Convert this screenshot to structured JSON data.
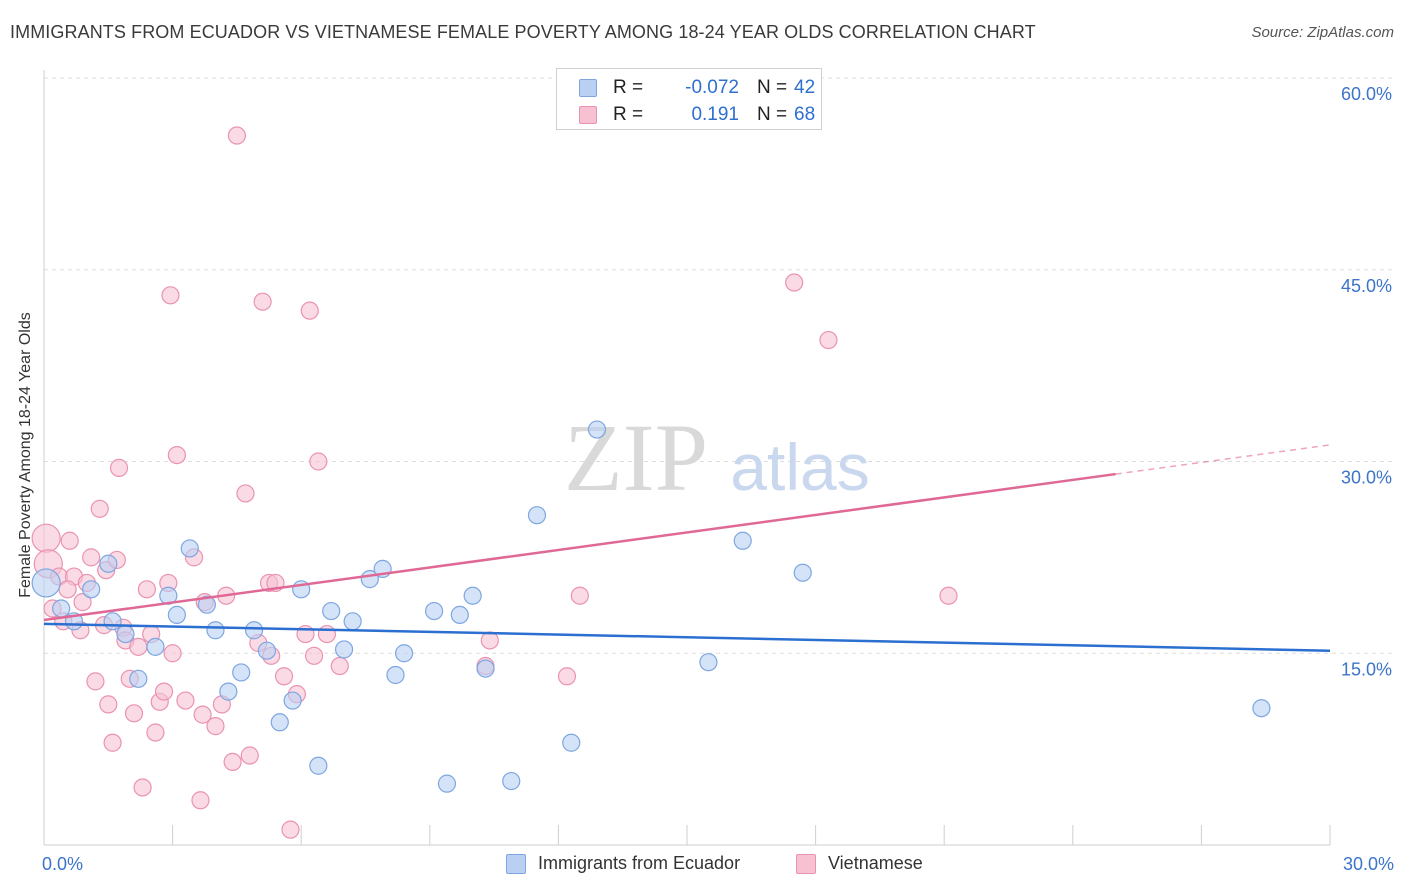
{
  "title": "IMMIGRANTS FROM ECUADOR VS VIETNAMESE FEMALE POVERTY AMONG 18-24 YEAR OLDS CORRELATION CHART",
  "source": "Source: ZipAtlas.com",
  "watermark": {
    "zip": "ZIP",
    "atlas": "atlas"
  },
  "legend_top": [
    {
      "r_label": "R =",
      "r_value": "-0.072",
      "n_label": "N =",
      "n_value": "42"
    },
    {
      "r_label": "R =",
      "r_value": "0.191",
      "n_label": "N =",
      "n_value": "68"
    }
  ],
  "colors": {
    "blue_fill": "#b9d0f3",
    "blue_stroke": "#7ea6e0",
    "blue_line": "#2b6fd0",
    "pink_fill": "#f7c1d2",
    "pink_stroke": "#ea93b1",
    "pink_line": "#e06895",
    "axis_text": "#3b74c9",
    "grid": "#dddddd"
  },
  "chart_data": {
    "type": "scatter",
    "title": "IMMIGRANTS FROM ECUADOR VS VIETNAMESE FEMALE POVERTY AMONG 18-24 YEAR OLDS CORRELATION CHART",
    "xlabel": "",
    "ylabel": "Female Poverty Among 18-24 Year Olds",
    "xlim": [
      0,
      30
    ],
    "ylim": [
      0,
      60
    ],
    "x_tick_labels": [
      "0.0%",
      "30.0%"
    ],
    "y_ticks": [
      15,
      30,
      45,
      60
    ],
    "y_tick_labels": [
      "15.0%",
      "30.0%",
      "45.0%",
      "60.0%"
    ],
    "grid": true,
    "legend_position": "bottom",
    "series": [
      {
        "name": "Immigrants from Ecuador",
        "color": "#b9d0f3",
        "trend": {
          "x": [
            0,
            30
          ],
          "y": [
            17.3,
            15.2
          ],
          "solid_to": 30
        },
        "points": [
          [
            0.05,
            20.5
          ],
          [
            0.4,
            18.5
          ],
          [
            0.7,
            17.5
          ],
          [
            1.1,
            20.0
          ],
          [
            1.5,
            22.0
          ],
          [
            1.6,
            17.5
          ],
          [
            1.9,
            16.5
          ],
          [
            2.2,
            13.0
          ],
          [
            2.6,
            15.5
          ],
          [
            2.9,
            19.5
          ],
          [
            3.1,
            18.0
          ],
          [
            3.4,
            23.2
          ],
          [
            3.8,
            18.8
          ],
          [
            4.0,
            16.8
          ],
          [
            4.3,
            12.0
          ],
          [
            4.6,
            13.5
          ],
          [
            4.9,
            16.8
          ],
          [
            5.2,
            15.2
          ],
          [
            5.5,
            9.6
          ],
          [
            5.8,
            11.3
          ],
          [
            6.0,
            20.0
          ],
          [
            6.4,
            6.2
          ],
          [
            6.7,
            18.3
          ],
          [
            7.0,
            15.3
          ],
          [
            7.2,
            17.5
          ],
          [
            7.6,
            20.8
          ],
          [
            7.9,
            21.6
          ],
          [
            8.2,
            13.3
          ],
          [
            8.4,
            15.0
          ],
          [
            9.1,
            18.3
          ],
          [
            9.4,
            4.8
          ],
          [
            9.7,
            18.0
          ],
          [
            10.0,
            19.5
          ],
          [
            10.3,
            13.8
          ],
          [
            10.9,
            5.0
          ],
          [
            11.5,
            25.8
          ],
          [
            12.3,
            8.0
          ],
          [
            12.9,
            32.5
          ],
          [
            15.5,
            14.3
          ],
          [
            16.3,
            23.8
          ],
          [
            17.7,
            21.3
          ],
          [
            28.4,
            10.7
          ]
        ]
      },
      {
        "name": "Vietnamese",
        "color": "#f7c1d2",
        "trend": {
          "x": [
            0,
            30
          ],
          "y": [
            17.6,
            31.3
          ],
          "solid_to": 25
        },
        "points": [
          [
            0.05,
            24.0
          ],
          [
            0.1,
            22.0
          ],
          [
            0.2,
            18.5
          ],
          [
            0.35,
            21.0
          ],
          [
            0.45,
            17.5
          ],
          [
            0.6,
            23.8
          ],
          [
            0.7,
            21.0
          ],
          [
            0.85,
            16.8
          ],
          [
            0.9,
            19.0
          ],
          [
            1.0,
            20.5
          ],
          [
            1.1,
            22.5
          ],
          [
            1.2,
            12.8
          ],
          [
            1.3,
            26.3
          ],
          [
            1.45,
            21.5
          ],
          [
            1.5,
            11.0
          ],
          [
            1.6,
            8.0
          ],
          [
            1.7,
            22.3
          ],
          [
            1.75,
            29.5
          ],
          [
            1.85,
            17.0
          ],
          [
            1.9,
            16.0
          ],
          [
            2.0,
            13.0
          ],
          [
            2.1,
            10.3
          ],
          [
            2.2,
            15.5
          ],
          [
            2.3,
            4.5
          ],
          [
            2.4,
            20.0
          ],
          [
            2.5,
            16.5
          ],
          [
            2.6,
            8.8
          ],
          [
            2.7,
            11.2
          ],
          [
            2.8,
            12.0
          ],
          [
            2.9,
            20.5
          ],
          [
            2.95,
            43.0
          ],
          [
            3.1,
            30.5
          ],
          [
            3.3,
            11.3
          ],
          [
            3.5,
            22.5
          ],
          [
            3.65,
            3.5
          ],
          [
            3.7,
            10.2
          ],
          [
            3.75,
            19.0
          ],
          [
            4.0,
            9.3
          ],
          [
            4.15,
            11.0
          ],
          [
            4.25,
            19.5
          ],
          [
            4.4,
            6.5
          ],
          [
            4.5,
            55.5
          ],
          [
            4.7,
            27.5
          ],
          [
            4.8,
            7.0
          ],
          [
            5.0,
            15.8
          ],
          [
            5.1,
            42.5
          ],
          [
            5.25,
            20.5
          ],
          [
            5.4,
            20.5
          ],
          [
            5.6,
            13.2
          ],
          [
            5.75,
            1.2
          ],
          [
            5.9,
            11.8
          ],
          [
            6.1,
            16.5
          ],
          [
            6.2,
            41.8
          ],
          [
            6.3,
            14.8
          ],
          [
            6.4,
            30.0
          ],
          [
            6.6,
            16.5
          ],
          [
            6.9,
            14.0
          ],
          [
            10.3,
            14.0
          ],
          [
            10.4,
            16.0
          ],
          [
            12.2,
            13.2
          ],
          [
            12.5,
            19.5
          ],
          [
            17.5,
            44.0
          ],
          [
            18.3,
            39.5
          ],
          [
            21.1,
            19.5
          ],
          [
            1.4,
            17.2
          ],
          [
            3.0,
            15.0
          ],
          [
            5.3,
            14.8
          ],
          [
            0.55,
            20.0
          ]
        ]
      }
    ]
  },
  "legend_bottom": [
    {
      "label": "Immigrants from Ecuador",
      "color": "#b9d0f3",
      "stroke": "#7ea6e0"
    },
    {
      "label": "Vietnamese",
      "color": "#f7c1d2",
      "stroke": "#ea93b1"
    }
  ]
}
